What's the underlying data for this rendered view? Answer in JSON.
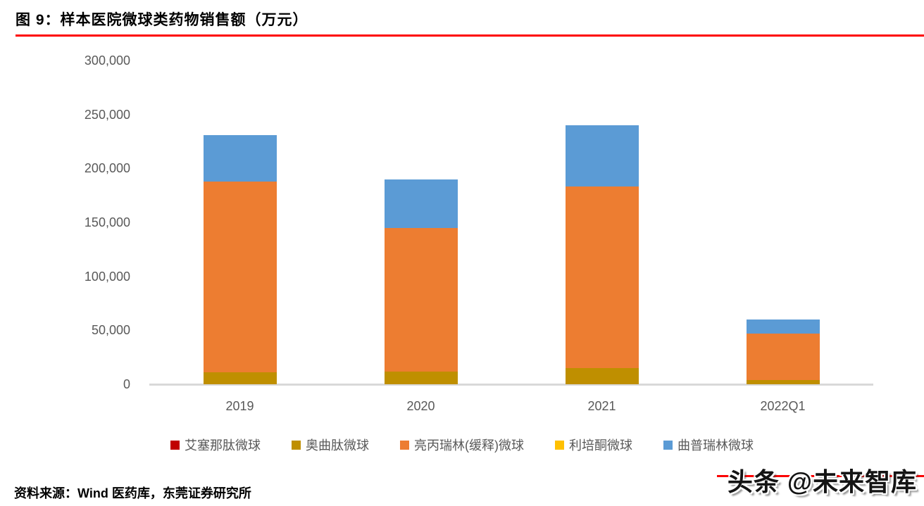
{
  "header": {
    "title": "图 9：样本医院微球类药物销售额（万元）",
    "rule_color": "#fe0000"
  },
  "chart_data": {
    "type": "bar",
    "stacked": true,
    "title": "样本医院微球类药物销售额（万元）",
    "categories": [
      "2019",
      "2020",
      "2021",
      "2022Q1"
    ],
    "series": [
      {
        "name": "艾塞那肽微球",
        "color": "#c00000",
        "values": [
          0,
          0,
          0,
          0
        ]
      },
      {
        "name": "奥曲肽微球",
        "color": "#bf8f00",
        "values": [
          11000,
          12000,
          15000,
          4000
        ]
      },
      {
        "name": "亮丙瑞林(缓释)微球",
        "color": "#ed7d31",
        "values": [
          177000,
          133000,
          168000,
          43000
        ]
      },
      {
        "name": "利培酮微球",
        "color": "#ffc000",
        "values": [
          0,
          0,
          0,
          0
        ]
      },
      {
        "name": "曲普瑞林微球",
        "color": "#5b9bd5",
        "values": [
          43000,
          45000,
          57000,
          13000
        ]
      }
    ],
    "totals": [
      231000,
      190000,
      240000,
      60000
    ],
    "xlabel": "",
    "ylabel": "",
    "ylim": [
      0,
      300000
    ],
    "ytick_step": 50000,
    "grid": false,
    "legend_position": "bottom",
    "axis_line_color": "#d9d9d9",
    "tick_label_color": "#595959"
  },
  "footer": {
    "source": "资料来源：Wind 医药库，东莞证券研究所"
  },
  "watermark": {
    "text": "头条 @未来智库"
  }
}
